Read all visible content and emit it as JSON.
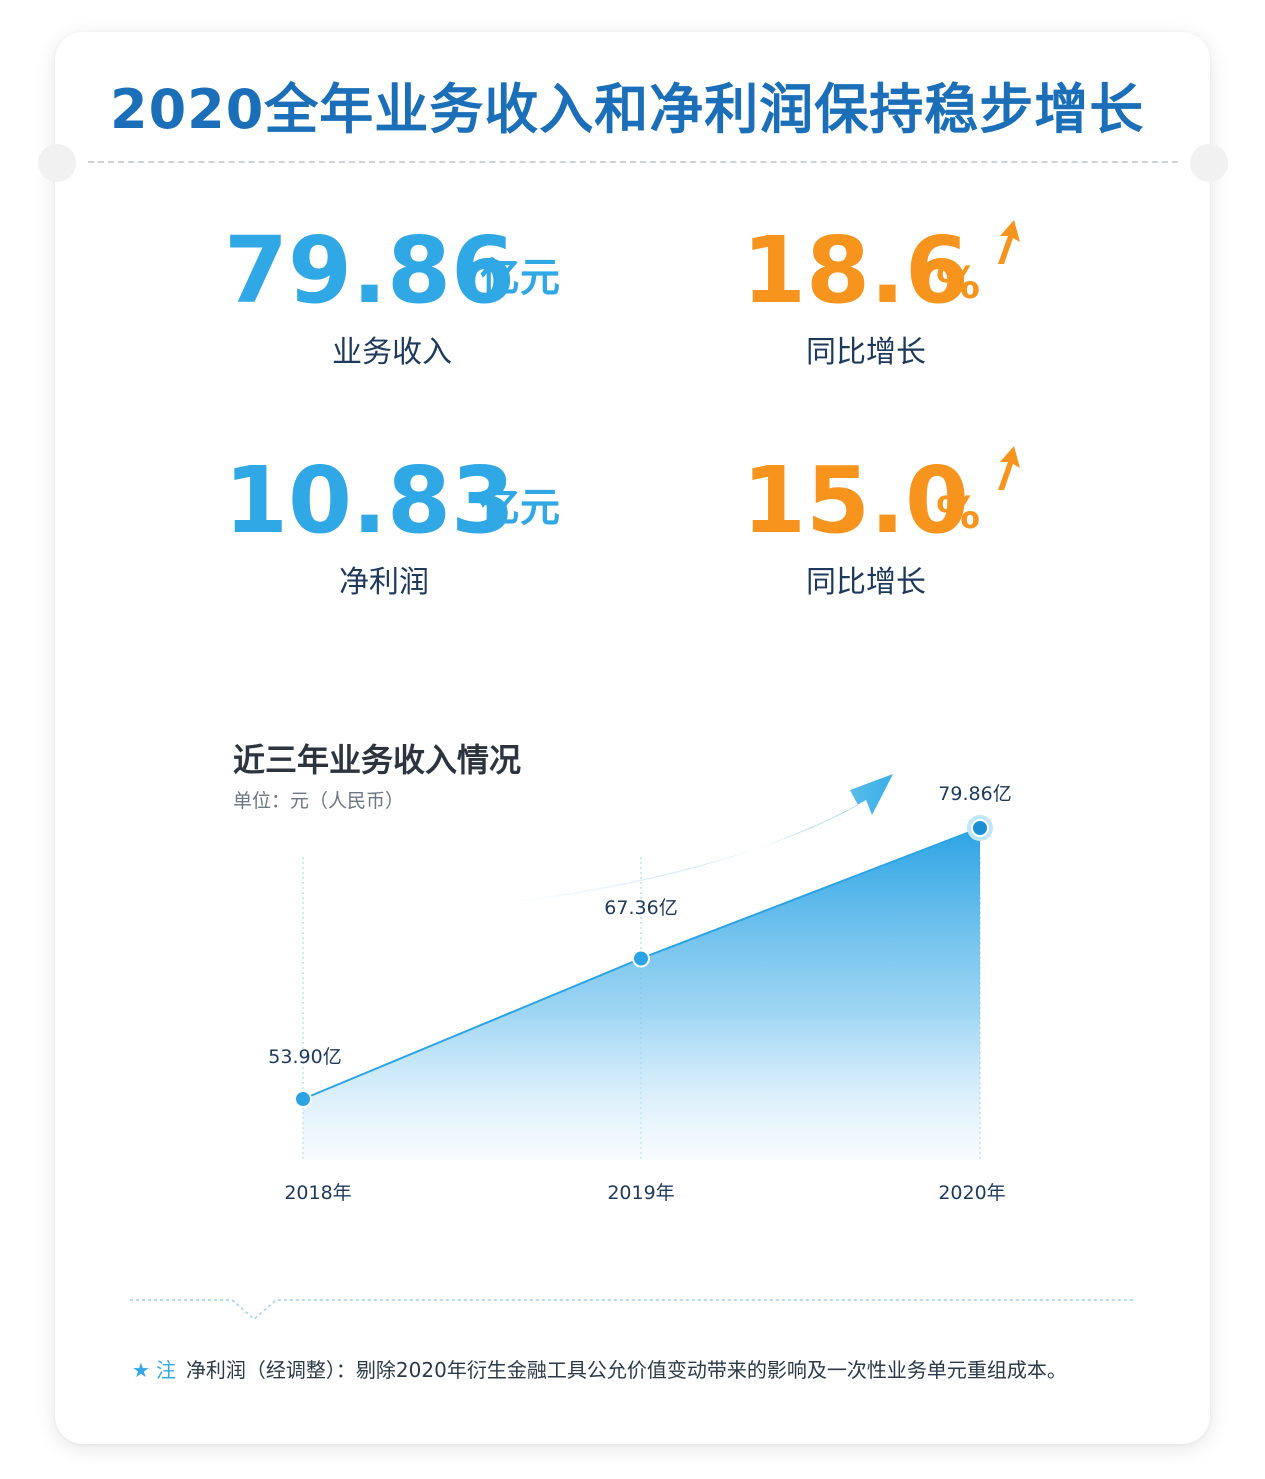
{
  "header": {
    "title": "2020全年业务收入和净利润保持稳步增长"
  },
  "stats": [
    {
      "value": "79.86",
      "unit": "亿元",
      "label": "业务收入"
    },
    {
      "value": "18.6",
      "unit": "%",
      "label": "同比增长"
    },
    {
      "value": "10.83",
      "unit": "亿元",
      "label": "净利润"
    },
    {
      "value": "15.0",
      "unit": "%",
      "label": "同比增长"
    }
  ],
  "colors": {
    "title": "#1b6fb8",
    "accent_blue": "#30a8e6",
    "accent_orange": "#f7941d",
    "text_dark": "#1d3a5c"
  },
  "chart": {
    "title": "近三年业务收入情况",
    "unit_label": "单位：元（人民币）"
  },
  "chart_data": {
    "type": "area",
    "title": "近三年业务收入情况",
    "subtitle": "单位：元（人民币）",
    "categories": [
      "2018年",
      "2019年",
      "2020年"
    ],
    "values": [
      53.9,
      67.36,
      79.86
    ],
    "data_labels": [
      "53.90亿",
      "67.36亿",
      "79.86亿"
    ],
    "xlabel": "",
    "ylabel": "",
    "grid": false,
    "legend": "none"
  },
  "note": {
    "label": "注",
    "text": "净利润（经调整）：剔除2020年衍生金融工具公允价值变动带来的影响及一次性业务单元重组成本。"
  }
}
